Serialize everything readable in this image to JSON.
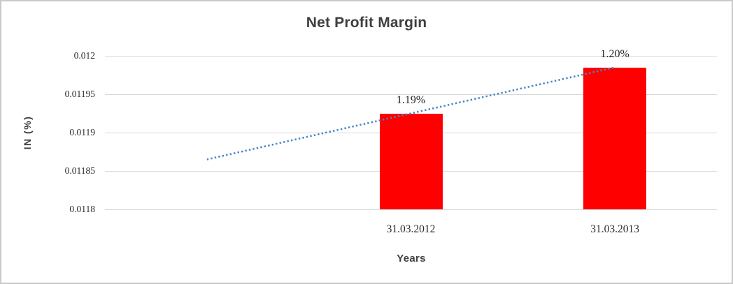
{
  "chart_data": {
    "type": "bar",
    "title": "Net Profit Margin",
    "xlabel": "Years",
    "ylabel": "IN (%)",
    "categories": [
      "31.03.2012",
      "31.03.2013"
    ],
    "values": [
      0.011925,
      0.011985
    ],
    "data_labels": [
      "1.19%",
      "1.20%"
    ],
    "ylim": [
      0.0118,
      0.012
    ],
    "ytick_labels_top_to_bottom": [
      "0.012",
      "0.01195",
      "0.0119",
      "0.01185",
      "0.0118"
    ],
    "yticks_top_to_bottom": [
      0.012,
      0.01195,
      0.0119,
      0.01185,
      0.0118
    ],
    "colors": {
      "bar": "#ff0000",
      "gridline": "#d9d9d9",
      "trendline": "#4a86c8",
      "title_text": "#3f3f3f",
      "tick_text": "#2b2b2b"
    },
    "layout": {
      "slots": 3,
      "category_slots": [
        1,
        2
      ],
      "grid": true,
      "legend": false
    },
    "trendline": {
      "style": "dotted",
      "points": [
        {
          "slot": 0,
          "value": 0.011865
        },
        {
          "slot": 2,
          "value": 0.011985
        }
      ]
    }
  }
}
